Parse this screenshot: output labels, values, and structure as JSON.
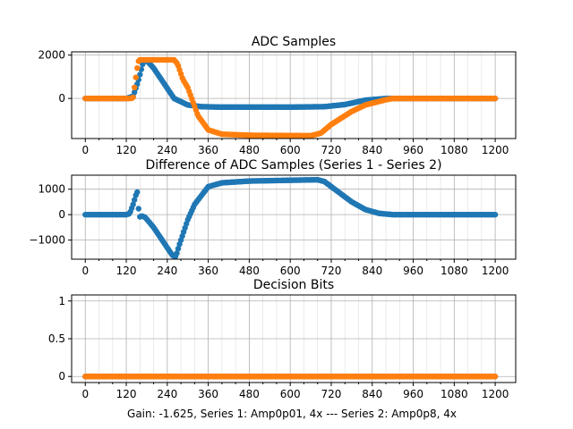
{
  "colors": {
    "series1": "#1f77b4",
    "series2": "#ff7f0e"
  },
  "caption": "Gain: -1.625, Series 1: Amp0p01, 4x --- Series 2: Amp0p8, 4x",
  "chart_data": [
    {
      "type": "scatter",
      "title": "ADC Samples",
      "xlim": [
        -40,
        1260
      ],
      "ylim": [
        -1850,
        2150
      ],
      "xticks": [
        0,
        120,
        240,
        360,
        480,
        600,
        720,
        840,
        960,
        1080,
        1200
      ],
      "yticks": [
        0,
        2000
      ],
      "grid": true,
      "series": [
        {
          "values_anchor": [
            [
              0,
              0
            ],
            [
              120,
              0
            ],
            [
              140,
              100
            ],
            [
              155,
              800
            ],
            [
              170,
              1700
            ],
            [
              180,
              1750
            ],
            [
              200,
              1400
            ],
            [
              230,
              700
            ],
            [
              260,
              0
            ],
            [
              300,
              -300
            ],
            [
              340,
              -380
            ],
            [
              400,
              -400
            ],
            [
              600,
              -400
            ],
            [
              700,
              -380
            ],
            [
              760,
              -280
            ],
            [
              820,
              -80
            ],
            [
              880,
              0
            ],
            [
              1200,
              0
            ]
          ]
        },
        {
          "values_anchor": [
            [
              0,
              0
            ],
            [
              135,
              0
            ],
            [
              140,
              50
            ],
            [
              150,
              1200
            ],
            [
              155,
              1700
            ],
            [
              160,
              1780
            ],
            [
              260,
              1780
            ],
            [
              270,
              1600
            ],
            [
              285,
              900
            ],
            [
              300,
              500
            ],
            [
              330,
              -800
            ],
            [
              360,
              -1450
            ],
            [
              400,
              -1650
            ],
            [
              480,
              -1700
            ],
            [
              660,
              -1720
            ],
            [
              690,
              -1600
            ],
            [
              720,
              -1200
            ],
            [
              780,
              -600
            ],
            [
              820,
              -300
            ],
            [
              880,
              -60
            ],
            [
              900,
              0
            ],
            [
              1200,
              0
            ]
          ]
        }
      ]
    },
    {
      "type": "scatter",
      "title": "Difference of ADC Samples (Series 1 - Series 2)",
      "xlim": [
        -40,
        1260
      ],
      "ylim": [
        -1750,
        1550
      ],
      "xticks": [
        0,
        120,
        240,
        360,
        480,
        600,
        720,
        840,
        960,
        1080,
        1200
      ],
      "yticks": [
        -1000,
        0,
        1000
      ],
      "grid": true,
      "series": [
        {
          "values_anchor": [
            [
              0,
              0
            ],
            [
              120,
              0
            ],
            [
              130,
              40
            ],
            [
              140,
              400
            ],
            [
              150,
              850
            ],
            [
              153,
              900
            ],
            [
              155,
              400
            ],
            [
              158,
              -100
            ],
            [
              165,
              -50
            ],
            [
              175,
              -100
            ],
            [
              200,
              -500
            ],
            [
              230,
              -1100
            ],
            [
              255,
              -1600
            ],
            [
              265,
              -1650
            ],
            [
              275,
              -1200
            ],
            [
              300,
              -200
            ],
            [
              320,
              400
            ],
            [
              360,
              1100
            ],
            [
              400,
              1250
            ],
            [
              480,
              1320
            ],
            [
              600,
              1350
            ],
            [
              680,
              1370
            ],
            [
              700,
              1300
            ],
            [
              740,
              900
            ],
            [
              780,
              500
            ],
            [
              820,
              200
            ],
            [
              860,
              50
            ],
            [
              900,
              0
            ],
            [
              1200,
              0
            ]
          ]
        }
      ]
    },
    {
      "type": "scatter",
      "title": "Decision Bits",
      "xlim": [
        -40,
        1260
      ],
      "ylim": [
        -0.08,
        1.08
      ],
      "xticks": [
        0,
        120,
        240,
        360,
        480,
        600,
        720,
        840,
        960,
        1080,
        1200
      ],
      "yticks": [
        0.0,
        0.5,
        1.0
      ],
      "grid": true,
      "series": [
        {
          "values_anchor": [
            [
              0,
              0
            ],
            [
              1200,
              0
            ]
          ]
        },
        {
          "values_anchor": [
            [
              0,
              0
            ],
            [
              1200,
              0
            ]
          ]
        }
      ]
    }
  ]
}
